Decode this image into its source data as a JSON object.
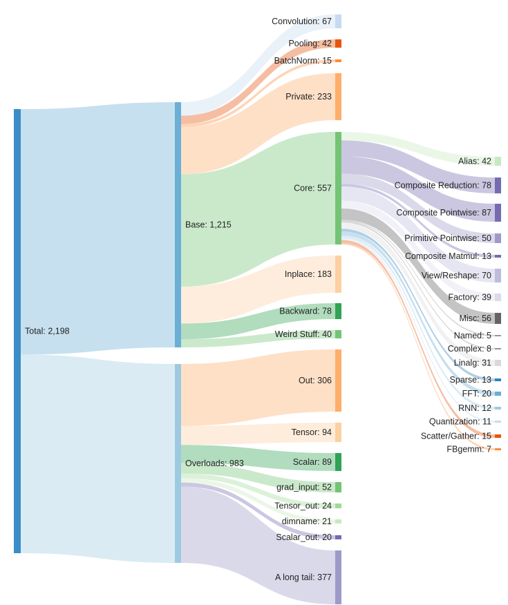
{
  "chart_data": {
    "type": "sankey",
    "title": "",
    "nodes": [
      {
        "id": "total",
        "label": "Total: 2,198",
        "value": 2198,
        "color": "#3A8DC7"
      },
      {
        "id": "base",
        "label": "Base: 1,215",
        "value": 1215,
        "color": "#6BAED6"
      },
      {
        "id": "overloads",
        "label": "Overloads: 983",
        "value": 983,
        "color": "#9ECAE1"
      },
      {
        "id": "convolution",
        "label": "Convolution: 67",
        "value": 67,
        "color": "#C6DBEF"
      },
      {
        "id": "pooling",
        "label": "Pooling: 42",
        "value": 42,
        "color": "#E6550D"
      },
      {
        "id": "batchnorm",
        "label": "BatchNorm: 15",
        "value": 15,
        "color": "#FD8D3C"
      },
      {
        "id": "private",
        "label": "Private: 233",
        "value": 233,
        "color": "#FDAE6B"
      },
      {
        "id": "core",
        "label": "Core: 557",
        "value": 557,
        "color": "#74C476"
      },
      {
        "id": "inplace",
        "label": "Inplace: 183",
        "value": 183,
        "color": "#FDD0A2"
      },
      {
        "id": "backward",
        "label": "Backward: 78",
        "value": 78,
        "color": "#31A354"
      },
      {
        "id": "weird",
        "label": "Weird Stuff: 40",
        "value": 40,
        "color": "#74C476"
      },
      {
        "id": "out",
        "label": "Out: 306",
        "value": 306,
        "color": "#FDAE6B"
      },
      {
        "id": "tensor",
        "label": "Tensor: 94",
        "value": 94,
        "color": "#FDD0A2"
      },
      {
        "id": "scalar",
        "label": "Scalar: 89",
        "value": 89,
        "color": "#31A354"
      },
      {
        "id": "grad_input",
        "label": "grad_input: 52",
        "value": 52,
        "color": "#74C476"
      },
      {
        "id": "tensor_out",
        "label": "Tensor_out: 24",
        "value": 24,
        "color": "#A1D99B"
      },
      {
        "id": "dimname",
        "label": "dimname: 21",
        "value": 21,
        "color": "#C7E9C0"
      },
      {
        "id": "scalar_out",
        "label": "Scalar_out: 20",
        "value": 20,
        "color": "#756BB1"
      },
      {
        "id": "longtail",
        "label": "A long tail: 377",
        "value": 377,
        "color": "#9E9AC8"
      },
      {
        "id": "alias",
        "label": "Alias: 42",
        "value": 42,
        "color": "#C7E9C0"
      },
      {
        "id": "comp_red",
        "label": "Composite Reduction: 78",
        "value": 78,
        "color": "#756BB1"
      },
      {
        "id": "comp_pw",
        "label": "Composite Pointwise: 87",
        "value": 87,
        "color": "#756BB1"
      },
      {
        "id": "prim_pw",
        "label": "Primitive Pointwise: 50",
        "value": 50,
        "color": "#9E9AC8"
      },
      {
        "id": "comp_mm",
        "label": "Composite Matmul: 13",
        "value": 13,
        "color": "#756BB1"
      },
      {
        "id": "view",
        "label": "View/Reshape: 70",
        "value": 70,
        "color": "#BCBDDC"
      },
      {
        "id": "factory",
        "label": "Factory: 39",
        "value": 39,
        "color": "#DADAEB"
      },
      {
        "id": "misc",
        "label": "Misc: 56",
        "value": 56,
        "color": "#636363"
      },
      {
        "id": "named",
        "label": "Named: 5",
        "value": 5,
        "color": "#969696"
      },
      {
        "id": "complex",
        "label": "Complex: 8",
        "value": 8,
        "color": "#969696"
      },
      {
        "id": "linalg",
        "label": "Linalg: 31",
        "value": 31,
        "color": "#D9D9D9"
      },
      {
        "id": "sparse",
        "label": "Sparse: 13",
        "value": 13,
        "color": "#3182BD"
      },
      {
        "id": "fft",
        "label": "FFT: 20",
        "value": 20,
        "color": "#6BAED6"
      },
      {
        "id": "rnn",
        "label": "RNN: 12",
        "value": 12,
        "color": "#9ECAE1"
      },
      {
        "id": "quant",
        "label": "Quantization: 11",
        "value": 11,
        "color": "#C6DBEF"
      },
      {
        "id": "scatter",
        "label": "Scatter/Gather: 15",
        "value": 15,
        "color": "#E6550D"
      },
      {
        "id": "fbgemm",
        "label": "FBgemm: 7",
        "value": 7,
        "color": "#FD8D3C"
      }
    ],
    "links": [
      {
        "source": "total",
        "target": "base",
        "value": 1215
      },
      {
        "source": "total",
        "target": "overloads",
        "value": 983
      },
      {
        "source": "base",
        "target": "convolution",
        "value": 67
      },
      {
        "source": "base",
        "target": "pooling",
        "value": 42
      },
      {
        "source": "base",
        "target": "batchnorm",
        "value": 15
      },
      {
        "source": "base",
        "target": "private",
        "value": 233
      },
      {
        "source": "base",
        "target": "core",
        "value": 557
      },
      {
        "source": "base",
        "target": "inplace",
        "value": 183
      },
      {
        "source": "base",
        "target": "backward",
        "value": 78
      },
      {
        "source": "base",
        "target": "weird",
        "value": 40
      },
      {
        "source": "overloads",
        "target": "out",
        "value": 306
      },
      {
        "source": "overloads",
        "target": "tensor",
        "value": 94
      },
      {
        "source": "overloads",
        "target": "scalar",
        "value": 89
      },
      {
        "source": "overloads",
        "target": "grad_input",
        "value": 52
      },
      {
        "source": "overloads",
        "target": "tensor_out",
        "value": 24
      },
      {
        "source": "overloads",
        "target": "dimname",
        "value": 21
      },
      {
        "source": "overloads",
        "target": "scalar_out",
        "value": 20
      },
      {
        "source": "overloads",
        "target": "longtail",
        "value": 377
      },
      {
        "source": "core",
        "target": "alias",
        "value": 42
      },
      {
        "source": "core",
        "target": "comp_red",
        "value": 78
      },
      {
        "source": "core",
        "target": "comp_pw",
        "value": 87
      },
      {
        "source": "core",
        "target": "prim_pw",
        "value": 50
      },
      {
        "source": "core",
        "target": "comp_mm",
        "value": 13
      },
      {
        "source": "core",
        "target": "view",
        "value": 70
      },
      {
        "source": "core",
        "target": "factory",
        "value": 39
      },
      {
        "source": "core",
        "target": "misc",
        "value": 56
      },
      {
        "source": "core",
        "target": "named",
        "value": 5
      },
      {
        "source": "core",
        "target": "complex",
        "value": 8
      },
      {
        "source": "core",
        "target": "linalg",
        "value": 31
      },
      {
        "source": "core",
        "target": "sparse",
        "value": 13
      },
      {
        "source": "core",
        "target": "fft",
        "value": 20
      },
      {
        "source": "core",
        "target": "rnn",
        "value": 12
      },
      {
        "source": "core",
        "target": "quant",
        "value": 11
      },
      {
        "source": "core",
        "target": "scatter",
        "value": 15
      },
      {
        "source": "core",
        "target": "fbgemm",
        "value": 7
      }
    ]
  }
}
